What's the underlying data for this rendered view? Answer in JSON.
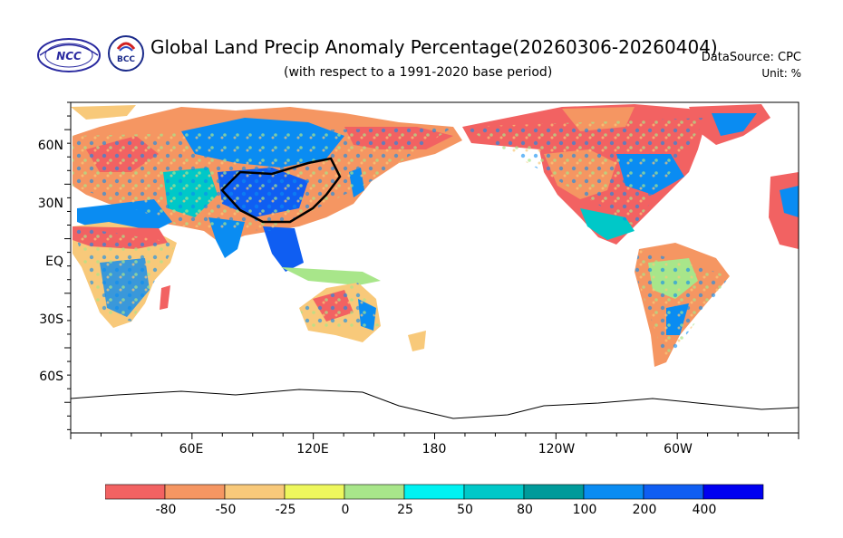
{
  "header": {
    "title": "Global Land Precip Anomaly Percentage(20260306-20260404)",
    "subtitle": "(with respect to a 1991-2020 base period)",
    "datasource": "DataSource:  CPC",
    "unit": "Unit:  %"
  },
  "logos": {
    "ncc": "NCC",
    "bcc": "BCC"
  },
  "map": {
    "y_labels": [
      "60N",
      "30N",
      "EQ",
      "30S",
      "60S"
    ],
    "x_labels": [
      "60E",
      "120E",
      "180",
      "120W",
      "60W"
    ]
  },
  "colorbar": {
    "labels": [
      "-80",
      "-50",
      "-25",
      "0",
      "25",
      "50",
      "80",
      "100",
      "200",
      "400"
    ],
    "colors": [
      "#f26262",
      "#f59662",
      "#f8c97a",
      "#eef75d",
      "#a8e68a",
      "#00f2f2",
      "#00c8c8",
      "#009a9a",
      "#0a8cf2",
      "#0f5ef2",
      "#0000f0"
    ]
  }
}
